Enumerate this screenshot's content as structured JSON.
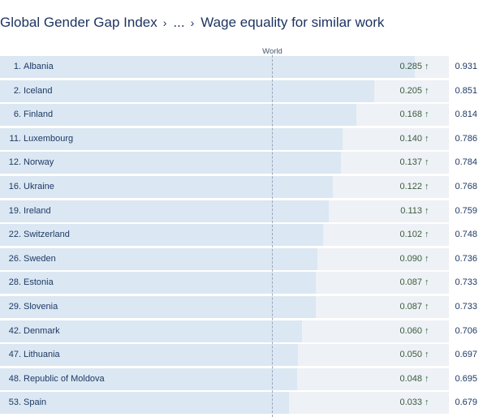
{
  "breadcrumb": {
    "root": "Global Gender Gap Index",
    "ellipsis": "...",
    "current": "Wage equality for similar work",
    "separator": "›"
  },
  "reference": {
    "label": "World",
    "value": 0.646
  },
  "colors": {
    "bar": "#dbe7f2",
    "track": "#eef1f5",
    "arrow": "#2e6b39",
    "text": "#1f3a66"
  },
  "chart_data": {
    "type": "bar",
    "orientation": "horizontal",
    "categories": [
      "Albania",
      "Iceland",
      "Finland",
      "Luxembourg",
      "Norway",
      "Ukraine",
      "Ireland",
      "Switzerland",
      "Sweden",
      "Estonia",
      "Slovenia",
      "Denmark",
      "Lithuania",
      "Republic of Moldova",
      "Spain"
    ],
    "ranks": [
      "1.",
      "2.",
      "6.",
      "11.",
      "12.",
      "16.",
      "19.",
      "22.",
      "26.",
      "28.",
      "29.",
      "42.",
      "47.",
      "48.",
      "53."
    ],
    "values": [
      0.931,
      0.851,
      0.814,
      0.786,
      0.784,
      0.768,
      0.759,
      0.748,
      0.736,
      0.733,
      0.733,
      0.706,
      0.697,
      0.695,
      0.679
    ],
    "difference_from_world": [
      "0.285",
      "0.205",
      "0.168",
      "0.140",
      "0.137",
      "0.122",
      "0.113",
      "0.102",
      "0.090",
      "0.087",
      "0.087",
      "0.060",
      "0.050",
      "0.048",
      "0.033"
    ],
    "difference_icon": "arrow-up-icon",
    "xlim": [
      0.1,
      1.0
    ]
  }
}
